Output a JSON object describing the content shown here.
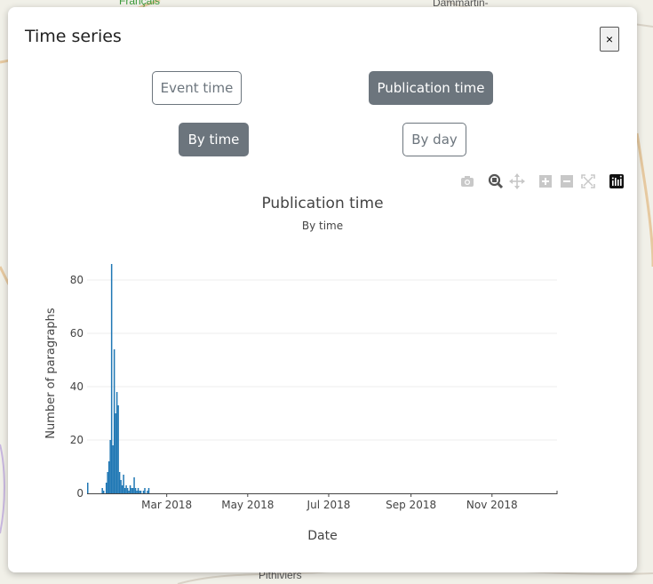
{
  "map": {
    "labels": [
      "Français",
      "Dammartin-",
      "Pithiviers"
    ]
  },
  "modal": {
    "title": "Time series",
    "close_label": "×",
    "source_toggle": {
      "options": [
        "Event time",
        "Publication time"
      ],
      "selected": "Publication time"
    },
    "granularity_toggle": {
      "options": [
        "By time",
        "By day"
      ],
      "selected": "By time"
    }
  },
  "toolbar": {
    "icons": [
      "camera-icon",
      "zoom-icon",
      "pan-icon",
      "zoom-in-icon",
      "zoom-out-icon",
      "autoscale-icon",
      "plotly-logo-icon"
    ]
  },
  "chart_data": {
    "type": "bar",
    "title": "Publication time",
    "subtitle": "By time",
    "xlabel": "Date",
    "ylabel": "Number of paragraphs",
    "x_ticks": [
      "Mar 2018",
      "May 2018",
      "Jul 2018",
      "Sep 2018",
      "Nov 2018"
    ],
    "y_ticks": [
      0,
      20,
      40,
      60,
      80
    ],
    "ylim": [
      0,
      90
    ],
    "xlim": [
      "2017-12-31",
      "2018-12-20"
    ],
    "grid": true,
    "series": [
      {
        "color": "#1f77b4",
        "x": [
          "2017-12-31",
          "2018-01-11",
          "2018-01-12",
          "2018-01-14",
          "2018-01-15",
          "2018-01-16",
          "2018-01-17",
          "2018-01-18",
          "2018-01-19",
          "2018-01-20",
          "2018-01-21",
          "2018-01-22",
          "2018-01-23",
          "2018-01-24",
          "2018-01-25",
          "2018-01-26",
          "2018-01-27",
          "2018-01-28",
          "2018-01-29",
          "2018-01-30",
          "2018-01-31",
          "2018-02-01",
          "2018-02-02",
          "2018-02-03",
          "2018-02-04",
          "2018-02-05",
          "2018-02-06",
          "2018-02-07",
          "2018-02-08",
          "2018-02-09",
          "2018-02-10",
          "2018-02-11",
          "2018-02-12",
          "2018-02-14",
          "2018-02-15"
        ],
        "values": [
          4,
          2,
          1,
          4,
          8,
          12,
          20,
          86,
          18,
          54,
          30,
          38,
          33,
          8,
          5,
          3,
          7,
          2,
          3,
          2,
          1,
          3,
          2,
          2,
          6,
          2,
          1,
          2,
          1,
          1,
          0,
          1,
          2,
          1,
          2
        ]
      }
    ]
  }
}
